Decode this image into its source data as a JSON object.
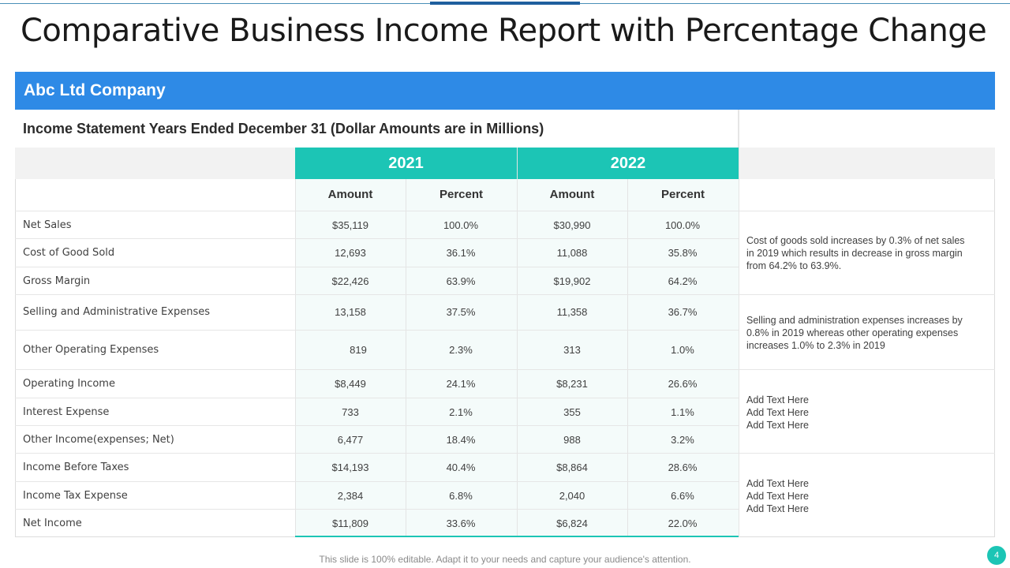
{
  "slide": {
    "title": "Comparative Business Income Report with Percentage Change",
    "company": "Abc Ltd Company",
    "statement_heading": "Income Statement Years Ended December 31 (Dollar Amounts are in Millions)",
    "footer": "This slide is 100% editable. Adapt it to your needs and capture your audience's attention.",
    "page_number": "4"
  },
  "table": {
    "years": [
      "2021",
      "2022"
    ],
    "column_headers": [
      "Amount",
      "Percent",
      "Amount",
      "Percent"
    ],
    "rows": [
      {
        "label": "Net Sales",
        "a2021": "$35,119",
        "p2021": "100.0%",
        "a2022": "$30,990",
        "p2022": "100.0%"
      },
      {
        "label": "Cost of Good Sold",
        "a2021": "12,693",
        "p2021": "36.1%",
        "a2022": "11,088",
        "p2022": "35.8%"
      },
      {
        "label": "Gross Margin",
        "a2021": "$22,426",
        "p2021": "63.9%",
        "a2022": "$19,902",
        "p2022": "64.2%"
      },
      {
        "label": "Selling and Administrative Expenses",
        "a2021": "13,158",
        "p2021": "37.5%",
        "a2022": "11,358",
        "p2022": "36.7%"
      },
      {
        "label": "Other Operating Expenses",
        "a2021": "819",
        "p2021": "2.3%",
        "a2022": "313",
        "p2022": "1.0%"
      },
      {
        "label": "Operating Income",
        "a2021": "$8,449",
        "p2021": "24.1%",
        "a2022": "$8,231",
        "p2022": "26.6%"
      },
      {
        "label": "Interest Expense",
        "a2021": "733",
        "p2021": "2.1%",
        "a2022": "355",
        "p2022": "1.1%"
      },
      {
        "label": "Other Income(expenses; Net)",
        "a2021": "6,477",
        "p2021": "18.4%",
        "a2022": "988",
        "p2022": "3.2%"
      },
      {
        "label": "Income Before Taxes",
        "a2021": "$14,193",
        "p2021": "40.4%",
        "a2022": "$8,864",
        "p2022": "28.6%"
      },
      {
        "label": "Income Tax Expense",
        "a2021": "2,384",
        "p2021": "6.8%",
        "a2022": "2,040",
        "p2022": "6.6%"
      },
      {
        "label": "Net Income",
        "a2021": "$11,809",
        "p2021": "33.6%",
        "a2022": "$6,824",
        "p2022": "22.0%"
      }
    ]
  },
  "notes": [
    {
      "lines": [
        "Cost of goods sold increases by 0.3% of net sales",
        "in 2019 which results in decrease in gross margin",
        "from 64.2% to 63.9%."
      ]
    },
    {
      "lines": [
        "Selling and administration expenses increases by",
        "0.8% in 2019 whereas other operating expenses",
        "increases 1.0% to 2.3% in 2019"
      ]
    },
    {
      "lines": [
        "Add Text Here",
        "Add Text Here",
        "Add Text Here"
      ]
    },
    {
      "lines": [
        "Add Text Here",
        "Add Text Here",
        "Add Text Here"
      ]
    }
  ],
  "colors": {
    "company_bar": "#2e8ae6",
    "year_header": "#1cc5b5",
    "accent_line": "#1f5f9e"
  }
}
